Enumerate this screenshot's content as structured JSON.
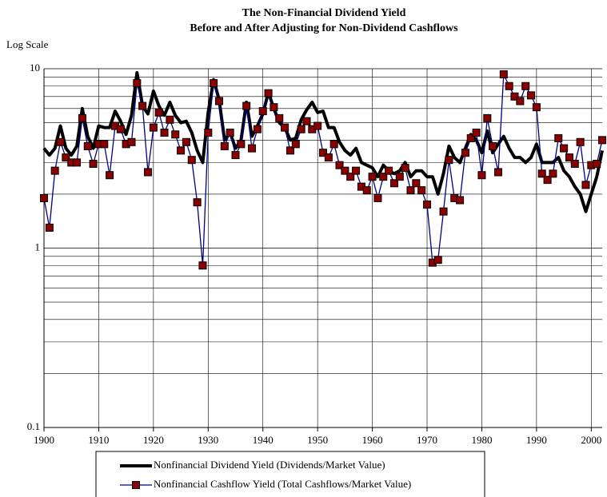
{
  "chart_data": {
    "type": "line",
    "title": "The Non-Financial Dividend Yield",
    "subtitle": "Before and After Adjusting for Non-Dividend Cashflows",
    "y_axis_label": "Log Scale",
    "log_scale": true,
    "grid": true,
    "legend_position": "bottom",
    "xlim": [
      1900,
      2002
    ],
    "xticks": [
      1900,
      1910,
      1920,
      1930,
      1940,
      1950,
      1960,
      1970,
      1980,
      1990,
      2000
    ],
    "ylim": [
      0.1,
      10
    ],
    "yticks": [
      0.1,
      1,
      10
    ],
    "yminorticks": [
      0.2,
      0.3,
      0.4,
      0.5,
      0.6,
      0.7,
      0.8,
      0.9,
      2,
      3,
      4,
      5,
      6,
      7,
      8,
      9
    ],
    "x": [
      1900,
      1901,
      1902,
      1903,
      1904,
      1905,
      1906,
      1907,
      1908,
      1909,
      1910,
      1911,
      1912,
      1913,
      1914,
      1915,
      1916,
      1917,
      1918,
      1919,
      1920,
      1921,
      1922,
      1923,
      1924,
      1925,
      1926,
      1927,
      1928,
      1929,
      1930,
      1931,
      1932,
      1933,
      1934,
      1935,
      1936,
      1937,
      1938,
      1939,
      1940,
      1941,
      1942,
      1943,
      1944,
      1945,
      1946,
      1947,
      1948,
      1949,
      1950,
      1951,
      1952,
      1953,
      1954,
      1955,
      1956,
      1957,
      1958,
      1959,
      1960,
      1961,
      1962,
      1963,
      1964,
      1965,
      1966,
      1967,
      1968,
      1969,
      1970,
      1971,
      1972,
      1973,
      1974,
      1975,
      1976,
      1977,
      1978,
      1979,
      1980,
      1981,
      1982,
      1983,
      1984,
      1985,
      1986,
      1987,
      1988,
      1989,
      1990,
      1991,
      1992,
      1993,
      1994,
      1995,
      1996,
      1997,
      1998,
      1999,
      2000,
      2001,
      2002
    ],
    "series": [
      {
        "name": "Nonfinancial Dividend Yield (Dividends/Market Value)",
        "color": "#000000",
        "values": [
          3.6,
          3.3,
          3.6,
          4.8,
          3.6,
          3.3,
          3.7,
          6.0,
          4.2,
          3.6,
          4.8,
          4.7,
          4.7,
          5.8,
          5.1,
          4.3,
          5.5,
          9.5,
          6.2,
          5.6,
          7.5,
          6.2,
          5.5,
          6.5,
          5.5,
          5.0,
          5.1,
          4.4,
          3.5,
          3.0,
          5.7,
          8.7,
          6.7,
          4.0,
          4.4,
          3.6,
          4.0,
          6.5,
          4.2,
          4.8,
          5.6,
          7.4,
          6.0,
          5.0,
          4.7,
          4.0,
          4.1,
          5.2,
          5.9,
          6.5,
          5.7,
          5.8,
          4.7,
          4.7,
          3.9,
          3.5,
          3.3,
          3.6,
          3.0,
          2.9,
          2.8,
          2.5,
          2.9,
          2.7,
          2.6,
          2.7,
          3.0,
          2.5,
          2.7,
          2.7,
          2.5,
          2.5,
          2.0,
          2.6,
          3.7,
          3.2,
          3.0,
          3.6,
          4.3,
          4.0,
          3.4,
          4.5,
          3.4,
          3.8,
          4.2,
          3.6,
          3.2,
          3.2,
          3.0,
          3.2,
          3.8,
          3.0,
          3.0,
          3.0,
          3.2,
          2.7,
          2.5,
          2.2,
          2.0,
          1.6,
          2.0,
          2.5,
          3.5
        ]
      },
      {
        "name": "Nonfinancial Cashflow Yield (Total Cashflows/Market Value)",
        "color": "#000080",
        "marker_color": "#8b0000",
        "values": [
          1.9,
          1.3,
          2.7,
          3.9,
          3.2,
          3.0,
          3.0,
          5.3,
          3.7,
          2.95,
          3.8,
          3.8,
          2.55,
          4.8,
          4.6,
          3.8,
          3.9,
          8.3,
          6.2,
          2.65,
          4.7,
          5.7,
          4.4,
          5.2,
          4.3,
          3.5,
          3.9,
          3.1,
          1.8,
          0.8,
          4.4,
          8.3,
          6.6,
          3.7,
          4.4,
          3.3,
          3.8,
          6.2,
          3.6,
          4.6,
          5.8,
          7.3,
          6.1,
          5.3,
          4.7,
          3.5,
          3.8,
          4.6,
          5.1,
          4.6,
          4.8,
          3.4,
          3.2,
          3.8,
          2.9,
          2.7,
          2.5,
          2.7,
          2.2,
          2.1,
          2.5,
          1.9,
          2.5,
          2.7,
          2.3,
          2.5,
          2.8,
          2.1,
          2.3,
          2.1,
          1.75,
          0.83,
          0.86,
          1.6,
          3.1,
          1.9,
          1.85,
          3.4,
          4.1,
          4.4,
          2.55,
          5.3,
          3.7,
          2.65,
          9.3,
          8.0,
          7.0,
          6.6,
          8.0,
          7.1,
          6.1,
          2.6,
          2.4,
          2.6,
          4.1,
          3.6,
          3.2,
          2.95,
          3.9,
          2.25,
          2.9,
          2.95,
          4.0
        ]
      }
    ]
  }
}
